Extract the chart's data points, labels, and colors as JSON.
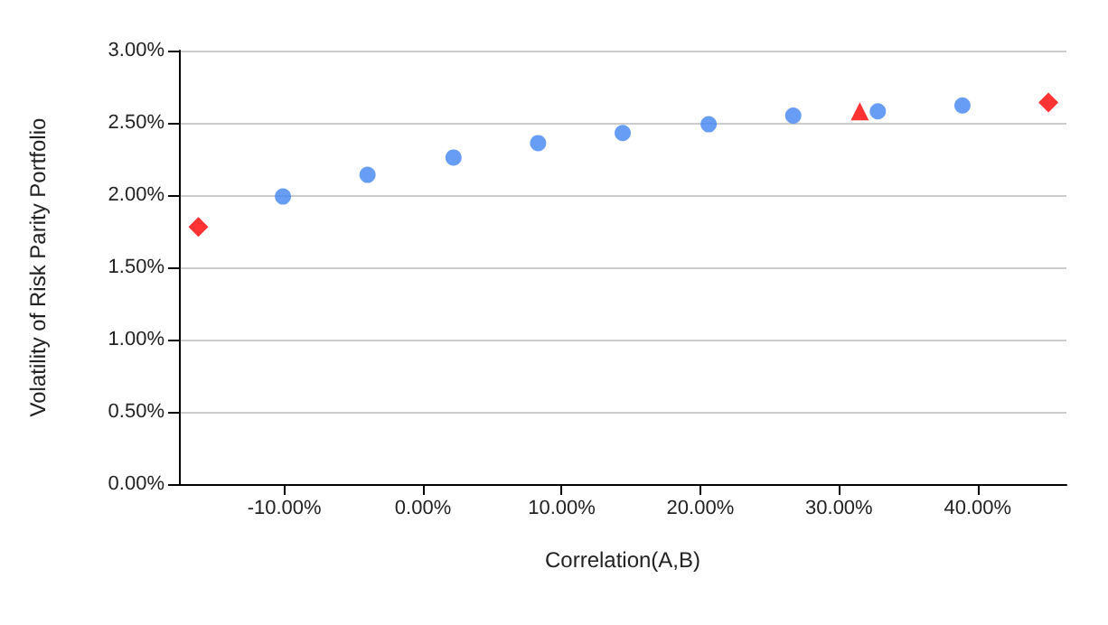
{
  "chart_data": {
    "type": "scatter",
    "xlabel": "Correlation(A,B)",
    "ylabel": "Volatility of Risk Parity Portfolio",
    "xlim": [
      -17.6,
      46.4
    ],
    "xticks": [
      {
        "value": -10,
        "label": "-10.00%"
      },
      {
        "value": 0,
        "label": "0.00%"
      },
      {
        "value": 10,
        "label": "10.00%"
      },
      {
        "value": 20,
        "label": "20.00%"
      },
      {
        "value": 30,
        "label": "30.00%"
      },
      {
        "value": 40,
        "label": "40.00%"
      }
    ],
    "ylim": [
      0,
      3
    ],
    "yticks": [
      {
        "value": 0,
        "label": "0.00%"
      },
      {
        "value": 0.5,
        "label": "0.50%"
      },
      {
        "value": 1,
        "label": "1.00%"
      },
      {
        "value": 1.5,
        "label": "1.50%"
      },
      {
        "value": 2,
        "label": "2.00%"
      },
      {
        "value": 2.5,
        "label": "2.50%"
      },
      {
        "value": 3,
        "label": "3.00%"
      }
    ],
    "grid": "y",
    "series": [
      {
        "color": "#4285f4",
        "marker": "circle",
        "x": [
          -10.1,
          -4.0,
          2.2,
          8.3,
          14.4,
          20.6,
          26.7,
          32.8,
          38.9
        ],
        "values": [
          1.99,
          2.14,
          2.26,
          2.36,
          2.43,
          2.49,
          2.55,
          2.58,
          2.62
        ]
      },
      {
        "color": "#ff0000",
        "marker": "diamond",
        "x": [
          -16.2,
          45.1
        ],
        "values": [
          1.78,
          2.64
        ]
      },
      {
        "color": "#ff0000",
        "marker": "triangle",
        "x": [
          31.5
        ],
        "values": [
          2.58
        ]
      }
    ]
  }
}
